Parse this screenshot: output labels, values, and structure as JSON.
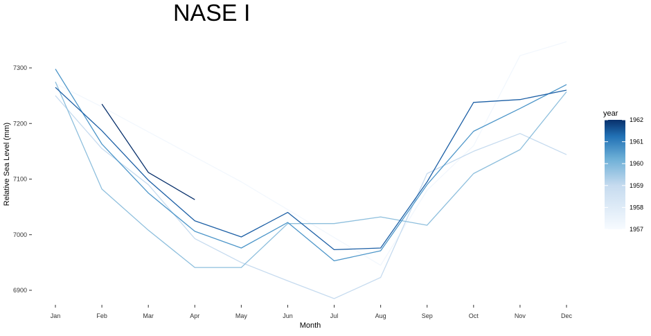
{
  "chart_data": {
    "type": "line",
    "title": "NASE I",
    "xlabel": "Month",
    "ylabel": "Relative Sea Level (mm)",
    "categories": [
      "Jan",
      "Feb",
      "Mar",
      "Apr",
      "May",
      "Jun",
      "Jul",
      "Aug",
      "Sep",
      "Oct",
      "Nov",
      "Dec"
    ],
    "ylim": [
      6850,
      7360
    ],
    "y_ticks": [
      6900,
      7000,
      7100,
      7200,
      7300
    ],
    "y_tick_labels": [
      "6900",
      "7000",
      "7100",
      "7200",
      "7300"
    ],
    "grid": false,
    "legend": {
      "title": "year",
      "position": "right",
      "type": "colorbar",
      "range": [
        1957,
        1962
      ],
      "ticks": [
        1957,
        1958,
        1959,
        1960,
        1961,
        1962
      ],
      "tick_labels": [
        "1957",
        "1958",
        "1959",
        "1960",
        "1961",
        "1962"
      ],
      "colors": [
        "#f7fbff",
        "#08306b"
      ]
    },
    "series": [
      {
        "year": 1957,
        "color": "#f2f7fd",
        "values": [
          7272,
          7230,
          7185,
          7140,
          7095,
          7045,
          6995,
          6945,
          7080,
          7160,
          7322,
          7347
        ]
      },
      {
        "year": 1958,
        "color": "#c6dbef",
        "values": [
          7250,
          7155,
          7090,
          6993,
          6950,
          6917,
          6885,
          6923,
          7110,
          7150,
          7182,
          7144
        ]
      },
      {
        "year": 1959,
        "color": "#8ebfdd",
        "values": [
          7275,
          7082,
          7008,
          6941,
          6941,
          7020,
          7020,
          7032,
          7017,
          7110,
          7153,
          7257
        ]
      },
      {
        "year": 1960,
        "color": "#4d96c9",
        "values": [
          7298,
          7163,
          7075,
          7006,
          6976,
          7022,
          6953,
          6971,
          7090,
          7186,
          7227,
          7270
        ]
      },
      {
        "year": 1961,
        "color": "#1c5fa5",
        "values": [
          7265,
          7187,
          7098,
          7025,
          6996,
          7040,
          6973,
          6976,
          7095,
          7238,
          7243,
          7260
        ]
      },
      {
        "year": 1962,
        "color": "#08306b",
        "values": [
          null,
          7235,
          7112,
          7063,
          null,
          null,
          null,
          null,
          null,
          null,
          null,
          null
        ]
      }
    ]
  }
}
